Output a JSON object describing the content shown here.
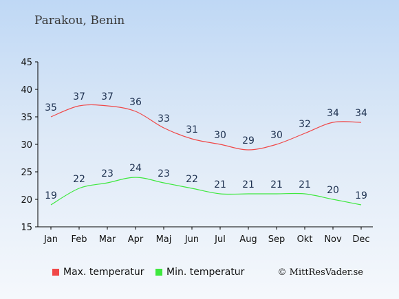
{
  "header": {
    "title": "Parakou, Benin"
  },
  "credit": "© MittResVader.se",
  "chart_data": {
    "type": "line",
    "categories": [
      "Jan",
      "Feb",
      "Mar",
      "Apr",
      "Maj",
      "Jun",
      "Jul",
      "Aug",
      "Sep",
      "Okt",
      "Nov",
      "Dec"
    ],
    "ylim": [
      15,
      45
    ],
    "yticks": [
      15,
      20,
      25,
      30,
      35,
      40,
      45
    ],
    "grid": false,
    "legend_position": "bottom",
    "series": [
      {
        "name": "Max. temperatur",
        "color": "#f04848",
        "values": [
          35,
          37,
          37,
          36,
          33,
          31,
          30,
          29,
          30,
          32,
          34,
          34
        ]
      },
      {
        "name": "Min. temperatur",
        "color": "#3ee83e",
        "values": [
          19,
          22,
          23,
          24,
          23,
          22,
          21,
          21,
          21,
          21,
          20,
          19
        ]
      }
    ]
  }
}
